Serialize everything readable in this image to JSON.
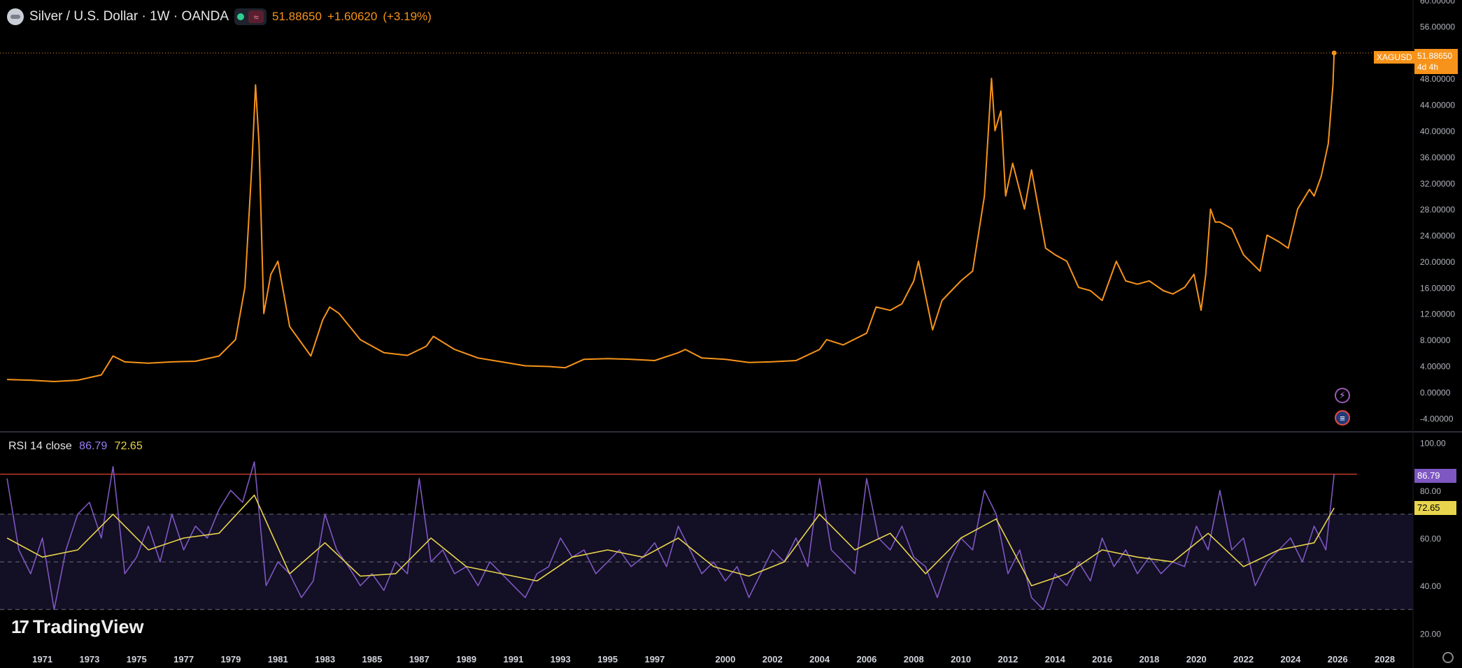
{
  "header": {
    "title": "Silver / U.S. Dollar · 1W · OANDA",
    "last": "51.88650",
    "change": "+1.60620",
    "change_pct": "(+3.19%)"
  },
  "price_badge": {
    "symbol": "XAGUSD",
    "value": "51.88650",
    "countdown": "4d 4h"
  },
  "rsi_legend": {
    "label": "RSI 14 close",
    "rsi": "86.79",
    "ma": "72.65"
  },
  "rsi_badges": {
    "rsi": "86.79",
    "ma": "72.65"
  },
  "brand": {
    "name": "TradingView"
  },
  "colors": {
    "price": "#f7931a",
    "rsi": "#7e57c2",
    "ma": "#e8d44d",
    "overbought_line": "#c0392b"
  },
  "icons": {
    "symbol": "silver-coin-icon",
    "flash": "flash-icon",
    "flag": "us-flag-icon",
    "settings": "settings-icon"
  },
  "chart_data": [
    {
      "type": "line",
      "title": "Silver / U.S. Dollar · 1W · OANDA",
      "series": [
        {
          "x": [
            1969.5,
            1970.5,
            1971.5,
            1972.5,
            1973.5,
            1974.0,
            1974.5,
            1975.5,
            1976.5,
            1977.5,
            1978.5,
            1979.2,
            1979.6,
            1979.9,
            1980.05,
            1980.2,
            1980.4,
            1980.7,
            1981.0,
            1981.5,
            1982.4,
            1982.9,
            1983.2,
            1983.6,
            1984.5,
            1985.5,
            1986.5,
            1987.3,
            1987.6,
            1988.5,
            1989.5,
            1990.5,
            1991.5,
            1992.5,
            1993.2,
            1994.0,
            1995.0,
            1996.0,
            1997.0,
            1998.0,
            1998.3,
            1999.0,
            2000.0,
            2001.0,
            2001.9,
            2003.0,
            2004.0,
            2004.3,
            2005.0,
            2006.0,
            2006.4,
            2007.0,
            2007.5,
            2008.0,
            2008.2,
            2008.8,
            2009.2,
            2010.0,
            2010.5,
            2011.0,
            2011.3,
            2011.45,
            2011.7,
            2011.9,
            2012.2,
            2012.7,
            2013.0,
            2013.3,
            2013.6,
            2014.0,
            2014.5,
            2015.0,
            2015.5,
            2016.0,
            2016.6,
            2017.0,
            2017.5,
            2018.0,
            2018.6,
            2019.0,
            2019.5,
            2019.9,
            2020.2,
            2020.4,
            2020.6,
            2020.8,
            2021.0,
            2021.5,
            2022.0,
            2022.7,
            2023.0,
            2023.5,
            2023.9,
            2024.3,
            2024.8,
            2025.0,
            2025.3,
            2025.6,
            2025.8,
            2025.85
          ],
          "values": [
            1.9,
            1.8,
            1.6,
            1.8,
            2.6,
            5.5,
            4.6,
            4.4,
            4.6,
            4.7,
            5.5,
            8.0,
            16.0,
            35.0,
            47.0,
            38.0,
            12.0,
            18.0,
            20.0,
            10.0,
            5.5,
            11.0,
            13.0,
            12.0,
            8.0,
            6.0,
            5.6,
            7.0,
            8.5,
            6.5,
            5.2,
            4.6,
            4.0,
            3.9,
            3.7,
            5.0,
            5.1,
            5.0,
            4.8,
            6.0,
            6.5,
            5.2,
            5.0,
            4.5,
            4.6,
            4.8,
            6.5,
            8.0,
            7.2,
            9.0,
            13.0,
            12.5,
            13.5,
            17.0,
            20.0,
            9.5,
            14.0,
            17.0,
            18.5,
            30.0,
            48.0,
            40.0,
            43.0,
            30.0,
            35.0,
            28.0,
            34.0,
            28.0,
            22.0,
            21.0,
            20.0,
            16.0,
            15.5,
            14.0,
            20.0,
            17.0,
            16.5,
            17.0,
            15.5,
            15.0,
            16.0,
            18.0,
            12.5,
            18.0,
            28.0,
            26.0,
            26.0,
            25.0,
            21.0,
            18.5,
            24.0,
            23.0,
            22.0,
            28.0,
            31.0,
            30.0,
            33.0,
            38.0,
            47.0,
            51.89
          ]
        }
      ],
      "xlim": [
        1969.2,
        2029.2
      ],
      "ylim": [
        -6,
        60
      ],
      "y_ticks": [
        "60.00000",
        "56.00000",
        "52.00000",
        "48.00000",
        "44.00000",
        "40.00000",
        "36.00000",
        "32.00000",
        "28.00000",
        "24.00000",
        "20.00000",
        "16.00000",
        "12.00000",
        "8.00000",
        "4.00000",
        "0.00000",
        "-4.00000"
      ],
      "last_value": 51.8865
    },
    {
      "type": "line",
      "title": "RSI 14 close",
      "series": [
        {
          "name": "RSI",
          "x": [
            1969.5,
            1970.0,
            1970.5,
            1971.0,
            1971.5,
            1972.0,
            1972.5,
            1973.0,
            1973.5,
            1974.0,
            1974.5,
            1975.0,
            1975.5,
            1976.0,
            1976.5,
            1977.0,
            1977.5,
            1978.0,
            1978.5,
            1979.0,
            1979.5,
            1980.0,
            1980.5,
            1981.0,
            1981.5,
            1982.0,
            1982.5,
            1983.0,
            1983.5,
            1984.0,
            1984.5,
            1985.0,
            1985.5,
            1986.0,
            1986.5,
            1987.0,
            1987.5,
            1988.0,
            1988.5,
            1989.0,
            1989.5,
            1990.0,
            1990.5,
            1991.0,
            1991.5,
            1992.0,
            1992.5,
            1993.0,
            1993.5,
            1994.0,
            1994.5,
            1995.0,
            1995.5,
            1996.0,
            1996.5,
            1997.0,
            1997.5,
            1998.0,
            1998.5,
            1999.0,
            1999.5,
            2000.0,
            2000.5,
            2001.0,
            2001.5,
            2002.0,
            2002.5,
            2003.0,
            2003.5,
            2004.0,
            2004.5,
            2005.0,
            2005.5,
            2006.0,
            2006.5,
            2007.0,
            2007.5,
            2008.0,
            2008.5,
            2009.0,
            2009.5,
            2010.0,
            2010.5,
            2011.0,
            2011.5,
            2012.0,
            2012.5,
            2013.0,
            2013.5,
            2014.0,
            2014.5,
            2015.0,
            2015.5,
            2016.0,
            2016.5,
            2017.0,
            2017.5,
            2018.0,
            2018.5,
            2019.0,
            2019.5,
            2020.0,
            2020.5,
            2021.0,
            2021.5,
            2022.0,
            2022.5,
            2023.0,
            2023.5,
            2024.0,
            2024.5,
            2025.0,
            2025.5,
            2025.85
          ],
          "values": [
            85,
            55,
            45,
            60,
            30,
            55,
            70,
            75,
            60,
            90,
            45,
            52,
            65,
            50,
            70,
            55,
            65,
            60,
            72,
            80,
            75,
            92,
            40,
            50,
            45,
            35,
            42,
            70,
            55,
            48,
            40,
            45,
            38,
            50,
            45,
            85,
            50,
            55,
            45,
            48,
            40,
            50,
            45,
            40,
            35,
            45,
            48,
            60,
            52,
            55,
            45,
            50,
            55,
            48,
            52,
            58,
            48,
            65,
            55,
            45,
            50,
            42,
            48,
            35,
            45,
            55,
            50,
            60,
            48,
            85,
            55,
            50,
            45,
            85,
            60,
            55,
            65,
            52,
            48,
            35,
            50,
            60,
            55,
            80,
            70,
            45,
            55,
            35,
            30,
            45,
            40,
            50,
            42,
            60,
            48,
            55,
            45,
            52,
            45,
            50,
            48,
            65,
            55,
            80,
            55,
            60,
            40,
            50,
            55,
            60,
            50,
            65,
            55,
            86.79
          ]
        },
        {
          "name": "MA",
          "x": [
            1969.5,
            1971.0,
            1972.5,
            1974.0,
            1975.5,
            1977.0,
            1978.5,
            1980.0,
            1981.5,
            1983.0,
            1984.5,
            1986.0,
            1987.5,
            1989.0,
            1990.5,
            1992.0,
            1993.5,
            1995.0,
            1996.5,
            1998.0,
            1999.5,
            2001.0,
            2002.5,
            2004.0,
            2005.5,
            2007.0,
            2008.5,
            2010.0,
            2011.5,
            2013.0,
            2014.5,
            2016.0,
            2017.5,
            2019.0,
            2020.5,
            2022.0,
            2023.5,
            2025.0,
            2025.85
          ],
          "values": [
            60,
            52,
            55,
            70,
            55,
            60,
            62,
            78,
            45,
            58,
            44,
            45,
            60,
            48,
            45,
            42,
            52,
            55,
            52,
            60,
            48,
            44,
            50,
            70,
            55,
            62,
            45,
            60,
            68,
            40,
            45,
            55,
            52,
            50,
            62,
            48,
            55,
            58,
            72.65
          ]
        }
      ],
      "xlim": [
        1969.2,
        2029.2
      ],
      "ylim": [
        16,
        104
      ],
      "y_ticks": [
        "100.00",
        "80.00",
        "60.00",
        "40.00",
        "20.00"
      ],
      "levels": [
        86.79,
        70,
        50,
        30
      ]
    }
  ],
  "x_ticks": [
    "1971",
    "1973",
    "1975",
    "1977",
    "1979",
    "1981",
    "1983",
    "1985",
    "1987",
    "1989",
    "1991",
    "1993",
    "1995",
    "1997",
    "2000",
    "2002",
    "2004",
    "2006",
    "2008",
    "2010",
    "2012",
    "2014",
    "2016",
    "2018",
    "2020",
    "2022",
    "2024",
    "2026",
    "2028"
  ]
}
